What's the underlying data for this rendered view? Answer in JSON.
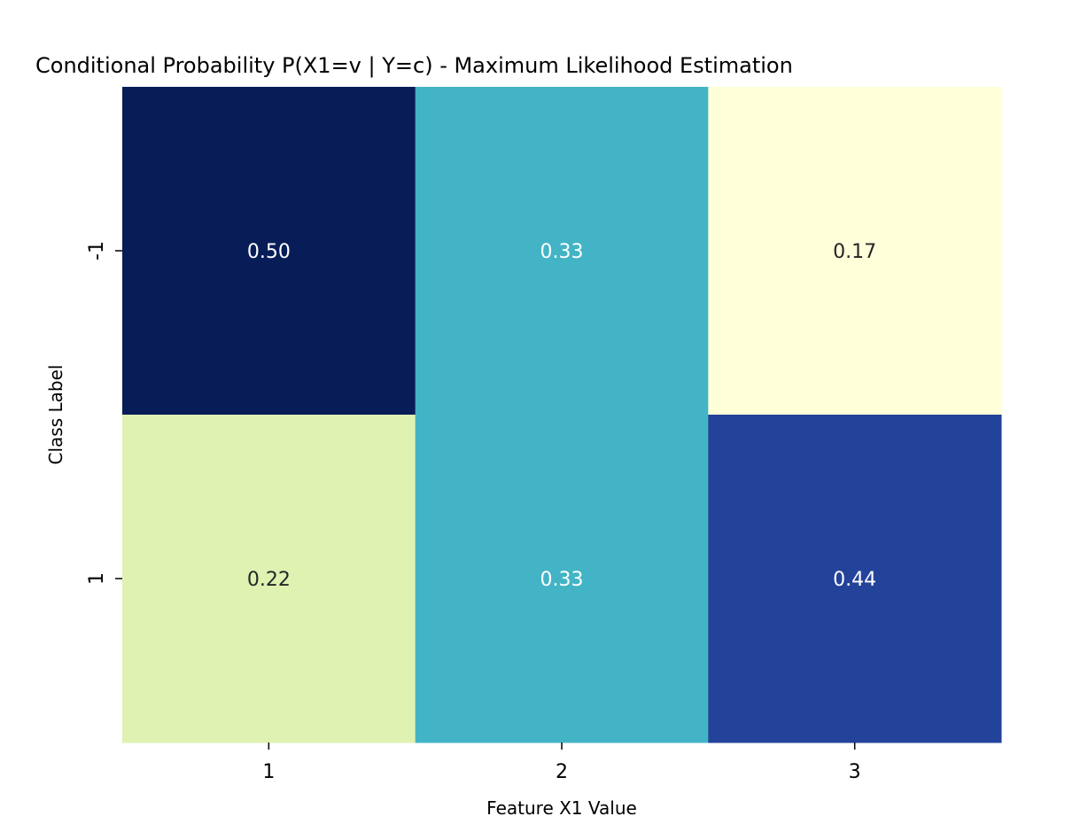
{
  "chart_data": {
    "type": "heatmap",
    "title": "Conditional Probability P(X1=v | Y=c) - Maximum Likelihood Estimation",
    "xlabel": "Feature X1 Value",
    "ylabel": "Class Label",
    "x_categories": [
      "1",
      "2",
      "3"
    ],
    "y_categories": [
      "-1",
      "1"
    ],
    "values": [
      [
        0.5,
        0.33,
        0.17
      ],
      [
        0.22,
        0.33,
        0.44
      ]
    ],
    "value_format": "0.00",
    "colormap": "YlGnBu",
    "vmin": 0.17,
    "vmax": 0.5,
    "colorbar": false,
    "grid": false,
    "cell_colors": [
      [
        "#081d58",
        "#43b4c6",
        "#ffffd9"
      ],
      [
        "#dff2b2",
        "#43b4c6",
        "#23429a"
      ]
    ],
    "annotation_colors": [
      [
        "#ffffff",
        "#ffffff",
        "#262626"
      ],
      [
        "#262626",
        "#ffffff",
        "#ffffff"
      ]
    ]
  }
}
